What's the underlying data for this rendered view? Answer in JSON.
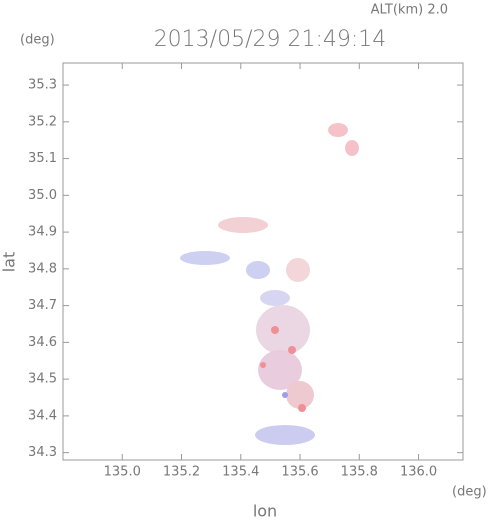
{
  "chart_data": {
    "type": "map",
    "title": "2013/05/29 21:49:14",
    "annotation": "ALT(km) 2.0",
    "y_unit": "(deg)",
    "x_unit": "(deg)",
    "xlabel": "lon",
    "ylabel": "lat",
    "xlim": [
      134.8,
      136.15
    ],
    "ylim": [
      34.28,
      35.36
    ],
    "xticks": [
      {
        "value": 135,
        "label": "135.0"
      },
      135.2,
      135.4,
      135.6,
      135.8,
      {
        "value": 136,
        "label": "136.0"
      }
    ],
    "yticks": [
      34.3,
      34.4,
      34.5,
      34.6,
      34.7,
      34.8,
      34.9,
      {
        "value": 35,
        "label": "35.0"
      },
      35.1,
      35.2,
      35.3
    ]
  }
}
